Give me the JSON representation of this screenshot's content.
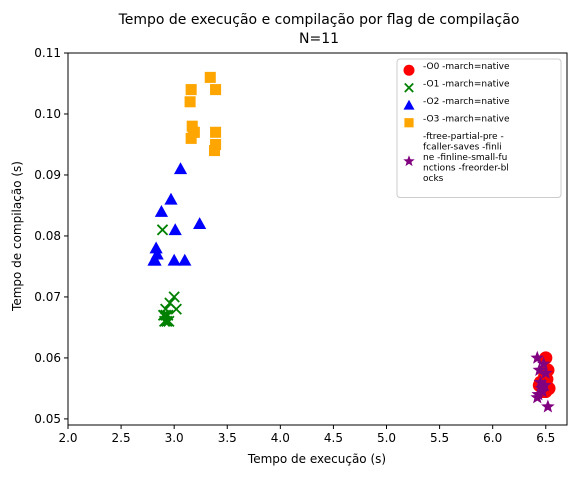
{
  "chart_data": {
    "type": "scatter",
    "title": "Tempo de execução e compilação por flag de compilação",
    "subtitle": "N=11",
    "xlabel": "Tempo de execução (s)",
    "ylabel": "Tempo de compilação (s)",
    "xlim": [
      2.0,
      6.7
    ],
    "ylim": [
      0.049,
      0.11
    ],
    "xticks": [
      "2.0",
      "2.5",
      "3.0",
      "3.5",
      "4.0",
      "4.5",
      "5.0",
      "5.5",
      "6.0",
      "6.5"
    ],
    "yticks": [
      "0.05",
      "0.06",
      "0.07",
      "0.08",
      "0.09",
      "0.10",
      "0.11"
    ],
    "grid": false,
    "legend_position": "top-right",
    "series": [
      {
        "name": "-O0 -march=native",
        "color": "#ff0000",
        "marker": "circle",
        "points": [
          [
            6.5,
            0.06
          ],
          [
            6.52,
            0.058
          ],
          [
            6.49,
            0.057
          ],
          [
            6.51,
            0.0565
          ],
          [
            6.45,
            0.056
          ],
          [
            6.47,
            0.0555
          ],
          [
            6.53,
            0.055
          ],
          [
            6.44,
            0.0555
          ],
          [
            6.48,
            0.0545
          ],
          [
            6.46,
            0.0555
          ],
          [
            6.5,
            0.0545
          ]
        ]
      },
      {
        "name": "-O1 -march=native",
        "color": "#008000",
        "marker": "x",
        "points": [
          [
            2.89,
            0.081
          ],
          [
            3.0,
            0.07
          ],
          [
            2.96,
            0.069
          ],
          [
            2.92,
            0.068
          ],
          [
            3.02,
            0.068
          ],
          [
            2.9,
            0.067
          ],
          [
            2.94,
            0.067
          ],
          [
            2.91,
            0.066
          ],
          [
            2.93,
            0.066
          ],
          [
            2.95,
            0.066
          ],
          [
            2.92,
            0.067
          ]
        ]
      },
      {
        "name": "-O2 -march=native",
        "color": "#0000ff",
        "marker": "triangle",
        "points": [
          [
            3.06,
            0.091
          ],
          [
            2.97,
            0.086
          ],
          [
            2.88,
            0.084
          ],
          [
            3.24,
            0.082
          ],
          [
            3.01,
            0.081
          ],
          [
            2.83,
            0.078
          ],
          [
            2.84,
            0.077
          ],
          [
            2.81,
            0.076
          ],
          [
            3.0,
            0.076
          ],
          [
            3.1,
            0.076
          ],
          [
            2.82,
            0.076
          ]
        ]
      },
      {
        "name": "-O3 -march=native",
        "color": "#ffa500",
        "marker": "square",
        "points": [
          [
            3.34,
            0.106
          ],
          [
            3.16,
            0.104
          ],
          [
            3.39,
            0.104
          ],
          [
            3.15,
            0.102
          ],
          [
            3.17,
            0.098
          ],
          [
            3.19,
            0.097
          ],
          [
            3.39,
            0.097
          ],
          [
            3.16,
            0.096
          ],
          [
            3.39,
            0.095
          ],
          [
            3.38,
            0.094
          ],
          [
            3.18,
            0.097
          ]
        ]
      },
      {
        "name": "-ftree-partial-pre -fcaller-saves -finline -finline-small-functions -freorder-blocks",
        "legend_lines": [
          "-ftree-partial-pre -",
          "fcaller-saves -finli",
          "ne -finline-small-fu",
          "nctions -freorder-bl",
          "ocks"
        ],
        "color": "#800080",
        "marker": "star",
        "points": [
          [
            6.42,
            0.06
          ],
          [
            6.48,
            0.059
          ],
          [
            6.44,
            0.058
          ],
          [
            6.5,
            0.0575
          ],
          [
            6.45,
            0.056
          ],
          [
            6.43,
            0.054
          ],
          [
            6.47,
            0.0545
          ],
          [
            6.42,
            0.0535
          ],
          [
            6.49,
            0.0555
          ],
          [
            6.52,
            0.052
          ],
          [
            6.46,
            0.055
          ]
        ]
      }
    ]
  }
}
